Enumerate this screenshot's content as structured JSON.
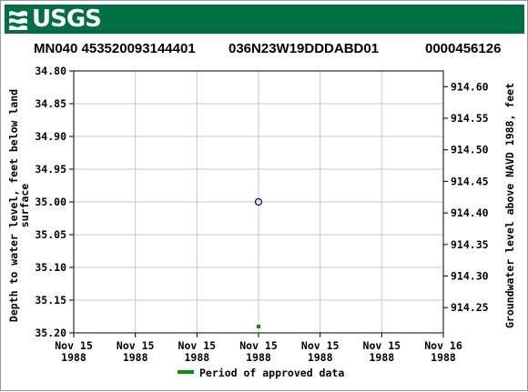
{
  "header": {
    "logo_text": "USGS",
    "brand_color": "#006f41"
  },
  "site": {
    "site_id": "MN040 453520093144401",
    "station_name": "036N23W19DDDABD01",
    "local_number": "0000456126"
  },
  "chart_data": {
    "type": "scatter",
    "title": "",
    "ylabel_left": "Depth to water level, feet below land surface",
    "ylabel_right": "Groundwater level above NAVD 1988, feet",
    "y_left_range": [
      34.8,
      35.2
    ],
    "y_left_inverted": true,
    "y_left_ticks": [
      "34.80",
      "34.85",
      "34.90",
      "34.95",
      "35.00",
      "35.05",
      "35.10",
      "35.15",
      "35.20"
    ],
    "y_right_range": [
      914.21,
      914.625
    ],
    "y_right_ticks": [
      "914.60",
      "914.55",
      "914.50",
      "914.45",
      "914.40",
      "914.35",
      "914.30",
      "914.25"
    ],
    "x_ticks": [
      [
        "Nov 15",
        "1988"
      ],
      [
        "Nov 15",
        "1988"
      ],
      [
        "Nov 15",
        "1988"
      ],
      [
        "Nov 15",
        "1988"
      ],
      [
        "Nov 15",
        "1988"
      ],
      [
        "Nov 15",
        "1988"
      ],
      [
        "Nov 16",
        "1988"
      ]
    ],
    "grid": true,
    "points": [
      {
        "x": "1988-11-15",
        "depth_ft": 35.0,
        "marker": "open-circle",
        "color": "#0000cc"
      }
    ],
    "approved_period": {
      "x": "1988-11-15",
      "color": "#009900"
    },
    "legend": {
      "label": "Period of approved data",
      "color": "#009900",
      "placement": "bottom-center"
    }
  }
}
